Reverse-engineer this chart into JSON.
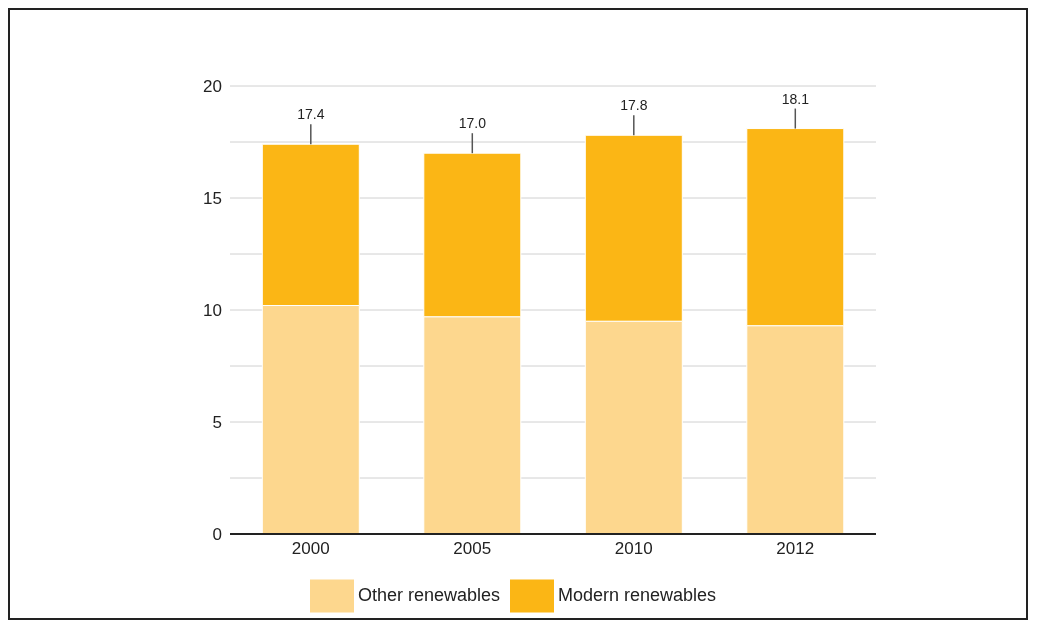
{
  "chart_data": {
    "type": "bar",
    "stacked": true,
    "categories": [
      "2000",
      "2005",
      "2010",
      "2012"
    ],
    "series": [
      {
        "name": "Other renewables",
        "color": "#fdd78e",
        "values": [
          10.2,
          9.7,
          9.5,
          9.3
        ]
      },
      {
        "name": "Modern renewables",
        "color": "#fbb615",
        "values": [
          7.2,
          7.3,
          8.3,
          8.8
        ]
      }
    ],
    "ylim": [
      0,
      20
    ],
    "yticks": [
      0,
      {
        "value": 2.5,
        "label": null
      },
      5,
      {
        "value": 7.5,
        "label": null
      },
      10,
      {
        "value": 12.5,
        "label": null
      },
      15,
      {
        "value": 17.5,
        "label": null
      },
      20
    ],
    "grid": "y",
    "legend": "bottom",
    "totals": [
      "17.4",
      "17.0",
      "17.8",
      "18.1"
    ]
  }
}
